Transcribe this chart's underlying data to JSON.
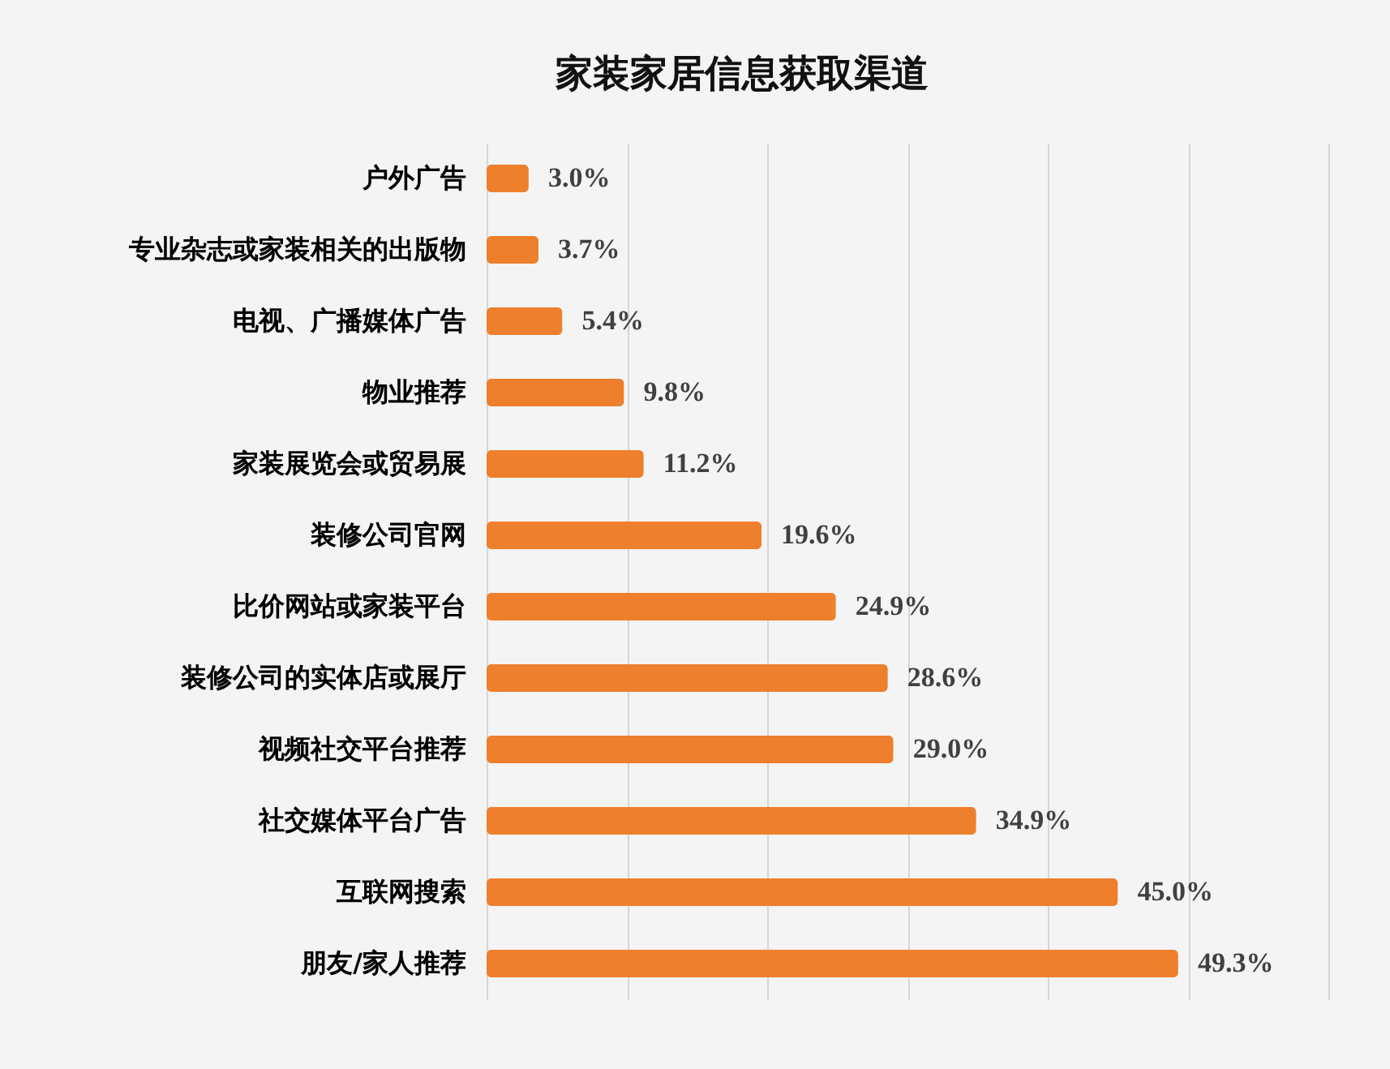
{
  "chart_data": {
    "type": "bar",
    "orientation": "horizontal",
    "title": "家装家居信息获取渠道",
    "categories": [
      "户外广告",
      "专业杂志或家装相关的出版物",
      "电视、广播媒体广告",
      "物业推荐",
      "家装展览会或贸易展",
      "装修公司官网",
      "比价网站或家装平台",
      "装修公司的实体店或展厅",
      "视频社交平台推荐",
      "社交媒体平台广告",
      "互联网搜索",
      "朋友/家人推荐"
    ],
    "values": [
      3.0,
      3.7,
      5.4,
      9.8,
      11.2,
      19.6,
      24.9,
      28.6,
      29.0,
      34.9,
      45.0,
      49.3
    ],
    "value_labels": [
      "3.0%",
      "3.7%",
      "5.4%",
      "9.8%",
      "11.2%",
      "19.6%",
      "24.9%",
      "28.6%",
      "29.0%",
      "34.9%",
      "45.0%",
      "49.3%"
    ],
    "color": "#ee7f2d",
    "xlim": [
      0,
      60
    ],
    "xticks": [
      {
        "value": 0,
        "label": null
      },
      {
        "value": 10,
        "label": null
      },
      {
        "value": 20,
        "label": null
      },
      {
        "value": 30,
        "label": null
      },
      {
        "value": 40,
        "label": null
      },
      {
        "value": 50,
        "label": null
      },
      {
        "value": 60,
        "label": null
      }
    ],
    "grid": "x",
    "tick_labels": "y"
  }
}
